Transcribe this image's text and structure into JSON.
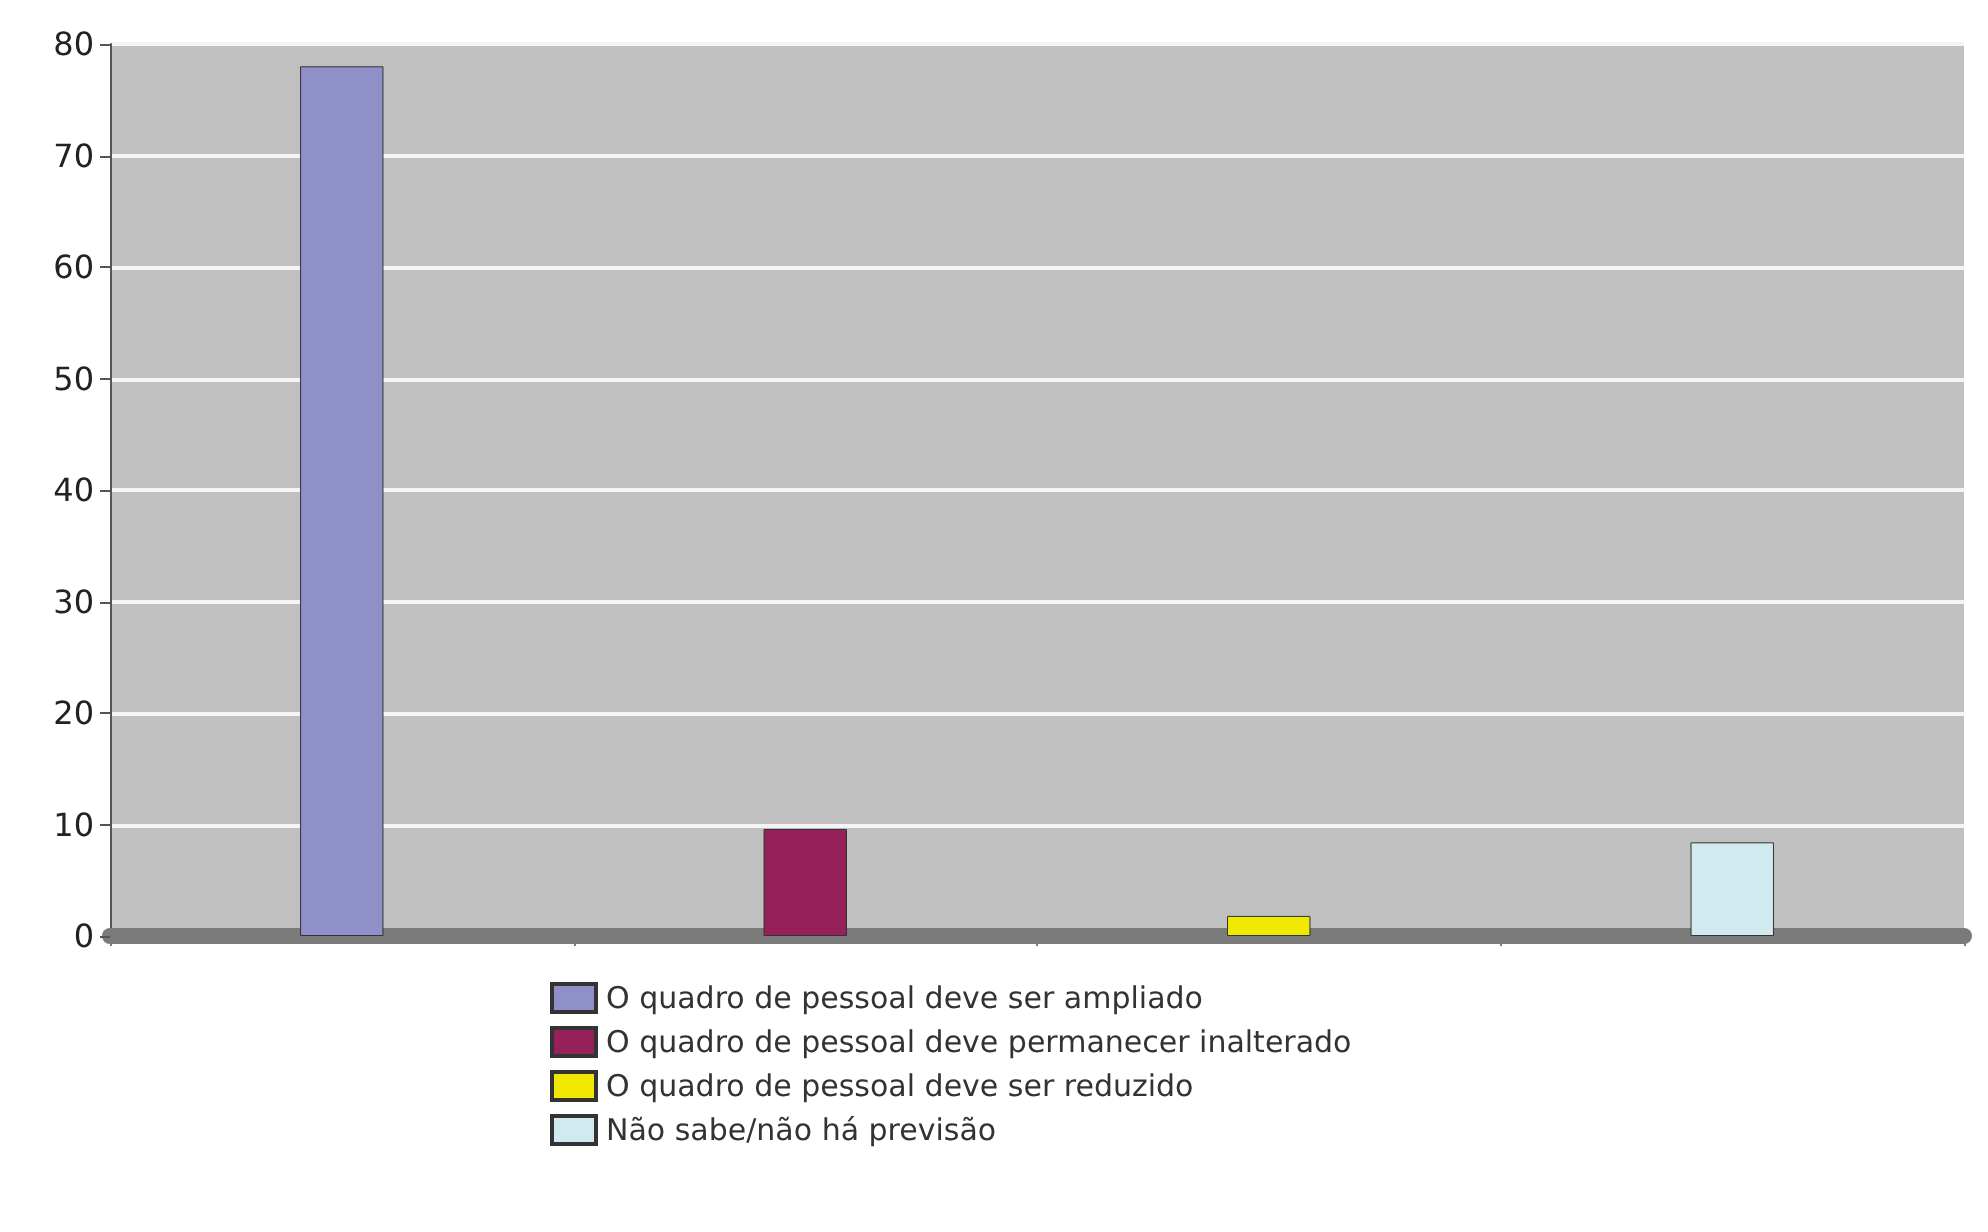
{
  "chart_data": {
    "type": "bar",
    "categories": [
      null,
      null,
      null,
      null
    ],
    "series": [
      {
        "name": "O quadro de pessoal deve ser ampliado",
        "color": "#9090c8",
        "values": [
          78,
          null,
          null,
          null
        ]
      },
      {
        "name": "O quadro de pessoal deve permanecer inalterado",
        "color": "#96205a",
        "values": [
          null,
          9.6,
          null,
          null
        ]
      },
      {
        "name": "O quadro de pessoal deve ser reduzido",
        "color": "#f0e800",
        "values": [
          null,
          null,
          1.8,
          null
        ]
      },
      {
        "name": "Não sabe/não há previsão",
        "color": "#d0eaf0",
        "values": [
          null,
          null,
          null,
          8.4
        ]
      }
    ],
    "ylim": [
      0,
      80
    ],
    "yticks": [
      0,
      10,
      20,
      30,
      40,
      50,
      60,
      70,
      80
    ],
    "grid": "y",
    "legend": "bottom"
  }
}
